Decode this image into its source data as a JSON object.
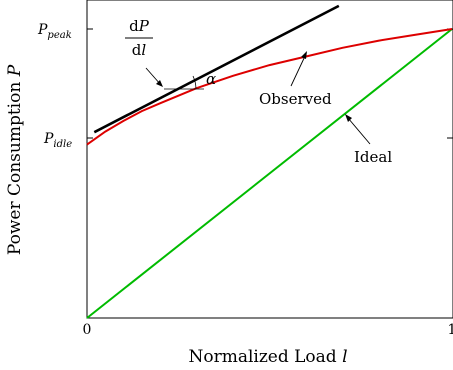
{
  "chart_data": {
    "type": "line",
    "xlabel": "Normalized Load l",
    "ylabel": "Power Consumption P",
    "xlim": [
      0,
      1
    ],
    "ylim": [
      0,
      1.3
    ],
    "x_ticks": [
      {
        "value": 0,
        "label": "0"
      },
      {
        "value": 1,
        "label": "1"
      }
    ],
    "y_ticks": [
      {
        "value": 1.0,
        "label": "P_peak"
      },
      {
        "value": 0.6,
        "label": "P_idle"
      }
    ],
    "series": [
      {
        "name": "Observed",
        "color": "#dd0000",
        "points": [
          [
            0.0,
            0.6
          ],
          [
            0.05,
            0.645
          ],
          [
            0.1,
            0.682
          ],
          [
            0.15,
            0.716
          ],
          [
            0.2,
            0.743
          ],
          [
            0.3,
            0.795
          ],
          [
            0.4,
            0.838
          ],
          [
            0.5,
            0.875
          ],
          [
            0.6,
            0.905
          ],
          [
            0.7,
            0.935
          ],
          [
            0.8,
            0.96
          ],
          [
            0.9,
            0.98
          ],
          [
            1.0,
            1.0
          ]
        ]
      },
      {
        "name": "Ideal",
        "color": "#00bb00",
        "points": [
          [
            0.0,
            0.0
          ],
          [
            1.0,
            1.0
          ]
        ]
      },
      {
        "name": "dP/dl",
        "color": "#000000",
        "points": [
          [
            0.02,
            0.643
          ],
          [
            0.69,
            1.08
          ]
        ]
      }
    ],
    "annotations": [
      {
        "text": "Observed",
        "at": [
          0.49,
          0.87
        ]
      },
      {
        "text": "Ideal",
        "at": [
          0.72,
          0.67
        ]
      },
      {
        "text": "dP/dl",
        "at": [
          0.22,
          0.75
        ]
      },
      {
        "text": "α",
        "at": [
          0.22,
          0.745
        ]
      }
    ]
  }
}
